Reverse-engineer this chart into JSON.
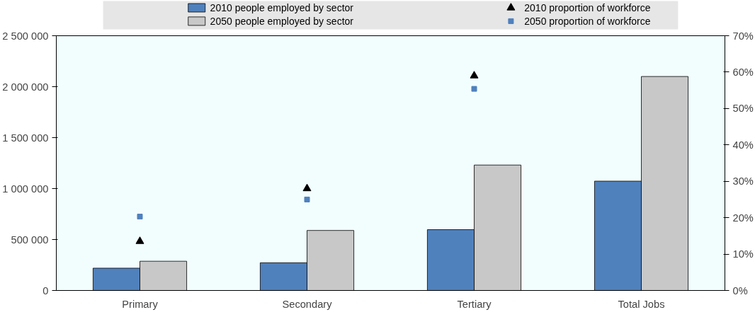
{
  "chart_data": {
    "type": "bar",
    "categories": [
      "Primary",
      "Secondary",
      "Tertiary",
      "Total Jobs"
    ],
    "series": [
      {
        "name": "2010 people employed by sector",
        "color": "#4f81bd",
        "values": [
          219000,
          272000,
          597000,
          1073000
        ]
      },
      {
        "name": "2050 people employed by sector",
        "color": "#c8c8c8",
        "values": [
          287000,
          589000,
          1231000,
          2100000
        ]
      },
      {
        "name": "2010 proportion of workforce",
        "type": "scatter",
        "marker": "triangle",
        "axis": "y2",
        "color": "#000000",
        "values": [
          13.5,
          28,
          59,
          null
        ]
      },
      {
        "name": "2050 proportion of workforce",
        "type": "scatter",
        "marker": "square",
        "axis": "y2",
        "color": "#4f81bd",
        "values": [
          20.3,
          25,
          55.4,
          null
        ]
      }
    ],
    "ylim": [
      0,
      2500000
    ],
    "yticks": [
      0,
      {
        "value": 500000,
        "label": "500 000"
      },
      {
        "value": 1000000,
        "label": "1 000 000"
      },
      {
        "value": 1500000,
        "label": "1 500 000"
      },
      {
        "value": 2000000,
        "label": "2 000 000"
      },
      {
        "value": 2500000,
        "label": "2 500 000"
      }
    ],
    "y2lim": [
      0,
      70
    ],
    "y2ticks": [
      {
        "value": 0,
        "label": "0%"
      },
      {
        "value": 10,
        "label": "10%"
      },
      {
        "value": 20,
        "label": "20%"
      },
      {
        "value": 30,
        "label": "30%"
      },
      {
        "value": 40,
        "label": "40%"
      },
      {
        "value": 50,
        "label": "50%"
      },
      {
        "value": 60,
        "label": "60%"
      },
      {
        "value": 70,
        "label": "70%"
      }
    ],
    "legend": "top",
    "grid": false
  }
}
